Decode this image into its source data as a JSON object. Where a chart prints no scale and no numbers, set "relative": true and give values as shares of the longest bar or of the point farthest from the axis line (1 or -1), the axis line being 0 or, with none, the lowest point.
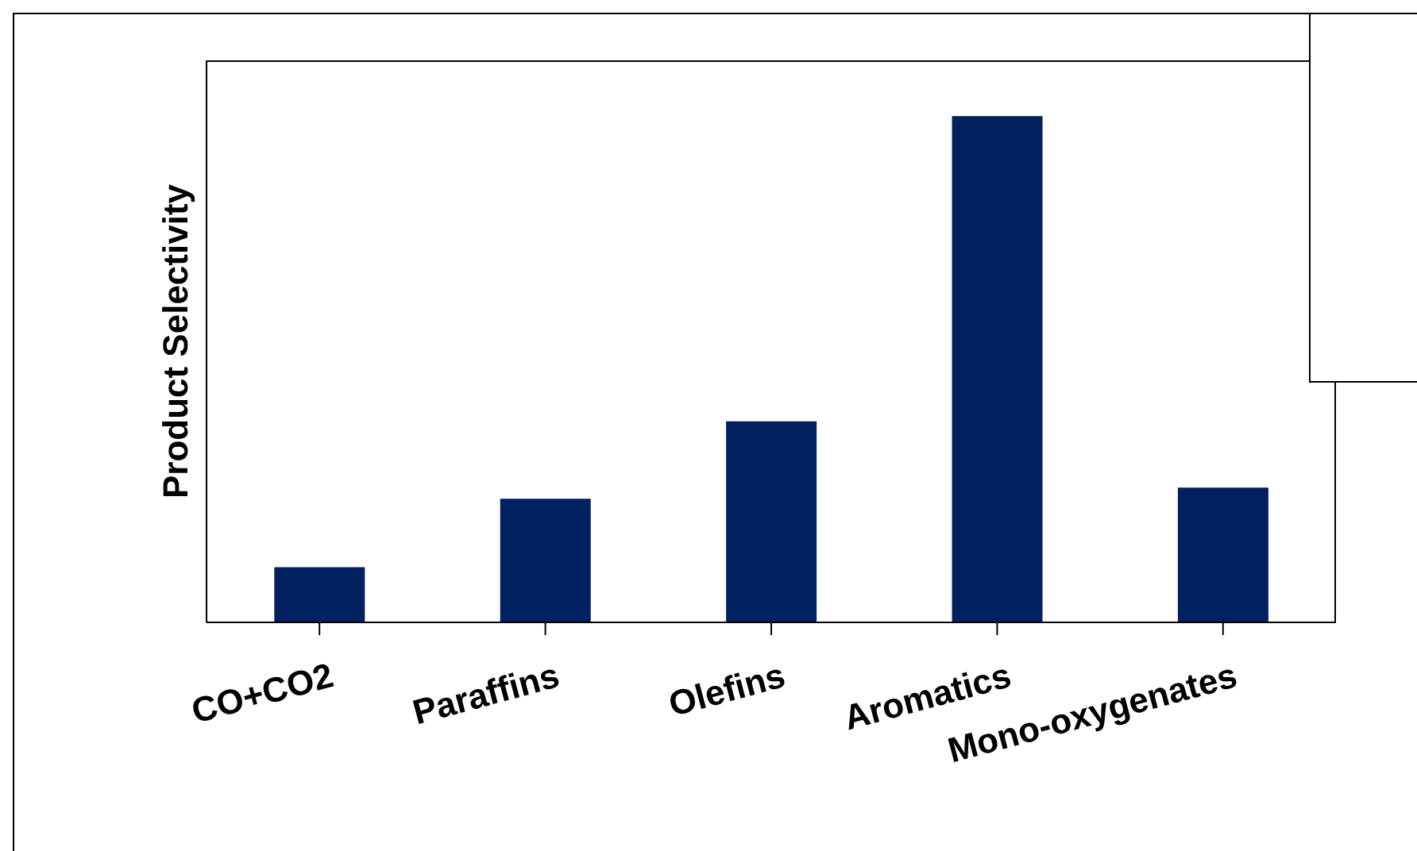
{
  "chart_data": {
    "type": "bar",
    "relative": true,
    "ylabel": "Product Selectivity",
    "categories": [
      "CO+CO2",
      "Paraffins",
      "Olefins",
      "Aromatics",
      "Mono-oxygenates"
    ],
    "values": [
      0.109,
      0.244,
      0.397,
      1,
      0.266
    ],
    "color": "#002060"
  }
}
